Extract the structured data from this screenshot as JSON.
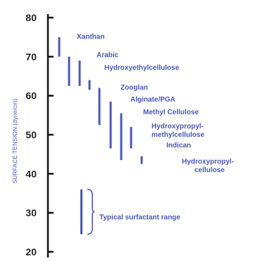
{
  "colors": {
    "ink": "#4b58b4",
    "axis": "#111111",
    "tick_text": "#222222"
  },
  "chart_data": {
    "type": "range-bar",
    "ylabel": "SURFACE TENSION  (dyne/cm)",
    "ylim": [
      20,
      80
    ],
    "yticks": [
      "20",
      "30",
      "40",
      "50",
      "60",
      "70",
      "80"
    ],
    "grid": false,
    "series": [
      {
        "name": "Xanthan",
        "low": 70,
        "high": 75
      },
      {
        "name": "Arabic",
        "low": 62.5,
        "high": 70
      },
      {
        "name": "Hydroxyethylcellulose",
        "low": 62.5,
        "high": 69
      },
      {
        "name": "",
        "low": 61.5,
        "high": 64
      },
      {
        "name": "Zooglan",
        "low": 52.5,
        "high": 62
      },
      {
        "name": "Alginate/PGA",
        "low": 46.5,
        "high": 58.5
      },
      {
        "name": "Methyl Cellulose",
        "low": 43.5,
        "high": 55.5
      },
      {
        "name": "Hydroxypropyl-methylcellulose",
        "low": 46.5,
        "high": 52
      },
      {
        "name": "Indican",
        "low": 42.5,
        "high": 44.5
      }
    ],
    "extra_labels": [
      "Hydroxypropyl-",
      "cellulose"
    ],
    "surfactant": {
      "label": "Typical surfactant range",
      "low": 24.5,
      "high": 36
    }
  },
  "labels": {
    "xanthan": "Xanthan",
    "arabic": "Arabic",
    "hec": "Hydroxyethylcellulose",
    "zooglan": "Zooglan",
    "alginate": "Alginate/PGA",
    "methyl": "Methyl Cellulose",
    "hpmc_1": "Hydroxypropyl-",
    "hpmc_2": "methylcellulose",
    "indican": "Indican",
    "hpc_1": "Hydroxypropyl-",
    "hpc_2": "cellulose",
    "surfactant": "Typical surfactant range"
  }
}
